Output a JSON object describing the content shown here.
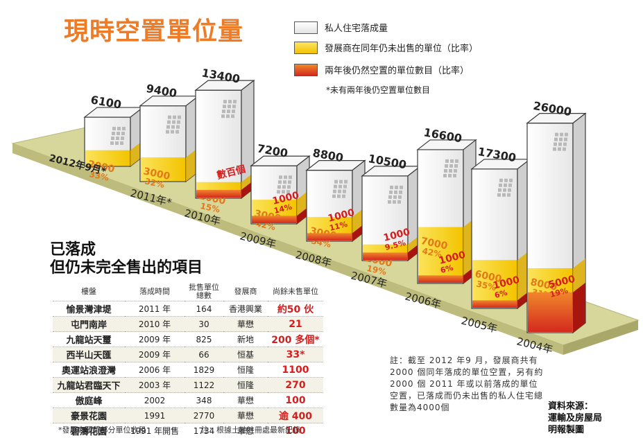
{
  "title": "現時空置單位量",
  "legend": {
    "total": "私人住宅落成量",
    "unsold": "發展商在同年仍未出售的單位（比率）",
    "vacant": "兩年後仍然空置的單位數目（比率）",
    "note": "*未有兩年後仍空置單位數目"
  },
  "colors": {
    "accent_orange": "#ee7c27",
    "unsold_yellow": "#f7d21e",
    "vacant_red": "#d42a1e",
    "platform": "#d6d69a",
    "label_red": "#d41e1e"
  },
  "chart_data": {
    "type": "bar",
    "title": "現時空置單位量",
    "categories": [
      "2012年9月*",
      "2011年*",
      "2010年",
      "2009年",
      "2008年",
      "2007年",
      "2006年",
      "2005年",
      "2004年"
    ],
    "series": [
      {
        "name": "私人住宅落成量",
        "values": [
          6100,
          9400,
          13400,
          7200,
          8800,
          10500,
          16600,
          17300,
          26000
        ]
      },
      {
        "name": "發展商在同年仍未出售的單位（比率）",
        "values": [
          2000,
          3000,
          2000,
          3000,
          3000,
          2000,
          7000,
          6000,
          8000
        ],
        "labels": [
          "2000",
          "3000",
          "2000",
          "3000",
          "3000",
          "2000",
          "7000",
          "6000",
          "8000"
        ],
        "ratios": [
          "33%",
          "32%",
          "15%",
          "42%",
          "34%",
          "19%",
          "42%",
          "35%",
          "31%"
        ]
      },
      {
        "name": "兩年後仍然空置的單位數目（比率）",
        "values": [
          null,
          null,
          null,
          1000,
          1000,
          1000,
          1000,
          1000,
          5000
        ],
        "labels": [
          "",
          "",
          "數百個",
          "1000",
          "1000",
          "1000",
          "1000",
          "1000",
          "5000"
        ],
        "ratios": [
          "",
          "",
          "",
          "14%",
          "11%",
          "9.5%",
          "6%",
          "6%",
          "19%"
        ]
      }
    ],
    "total_labels": [
      "6100",
      "9400",
      "13400",
      "7200",
      "8800",
      "10500",
      "16600",
      "17300",
      "26000"
    ]
  },
  "side_title": [
    "已落成",
    "但仍未完全售出的項目"
  ],
  "table": {
    "headers": [
      "樓盤",
      "落成時間",
      "批售單位總數",
      "發展商",
      "尚餘未售單位"
    ],
    "rows": [
      [
        "愉景灣津堤",
        "2011 年",
        "164",
        "香港興業",
        "約50 伙"
      ],
      [
        "屯門南岸",
        "2010 年",
        "30",
        "華懋",
        "21"
      ],
      [
        "九龍站天璽",
        "2009 年",
        "825",
        "新地",
        "200 多個*"
      ],
      [
        "西半山天匯",
        "2009 年",
        "66",
        "恒基",
        "33*"
      ],
      [
        "奧運站浪澄灣",
        "2006 年",
        "1829",
        "恒隆",
        "1100"
      ],
      [
        "九龍站君臨天下",
        "2003 年",
        "1122",
        "恒隆",
        "270"
      ],
      [
        "傲庭峰",
        "2002",
        "348",
        "華懋",
        "100"
      ],
      [
        "豪景花園",
        "1991",
        "2770",
        "華懋",
        "逾 400"
      ],
      [
        "碧濤花園",
        "1991 年開售",
        "1734",
        "華懋",
        "100"
      ]
    ]
  },
  "footnote_left": "*發展商預留部分單位收租",
  "footnote_right": "注：根據土地註冊處最新紀錄",
  "note": "註：截至 2012 年9 月，發展商共有2000 個同年落成的單位空置，另有約 2000 個 2011 年或以前落成的單位空置，已落成而仍未出售的私人住宅總數量為4000個",
  "source": [
    "資料來源：",
    "運輸及房屋局",
    "明報製圖"
  ]
}
